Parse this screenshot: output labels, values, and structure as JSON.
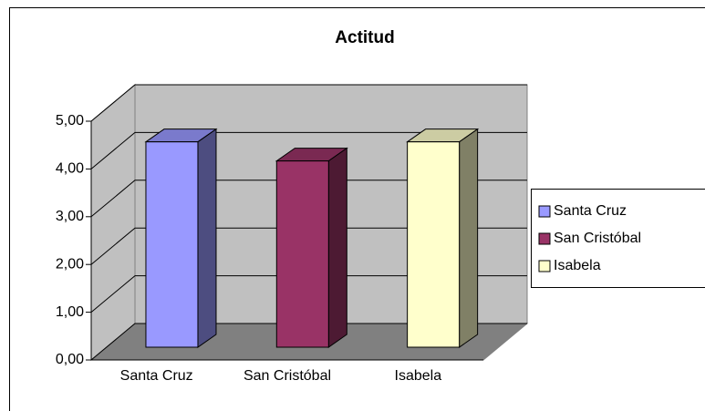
{
  "chart_data": {
    "type": "bar3d",
    "title": "Actitud",
    "categories": [
      "Santa Cruz",
      "San Cristóbal",
      "Isabela"
    ],
    "values": [
      4.3,
      3.9,
      4.3
    ],
    "colors": [
      "#9999ff",
      "#993366",
      "#ffffcc"
    ],
    "ylim": [
      0,
      5
    ],
    "yticks": [
      {
        "value": 0,
        "label": "0,00"
      },
      {
        "value": 1,
        "label": "1,00"
      },
      {
        "value": 2,
        "label": "2,00"
      },
      {
        "value": 3,
        "label": "3,00"
      },
      {
        "value": 4,
        "label": "4,00"
      },
      {
        "value": 5,
        "label": "5,00"
      }
    ],
    "grid": true,
    "legend": "right"
  }
}
